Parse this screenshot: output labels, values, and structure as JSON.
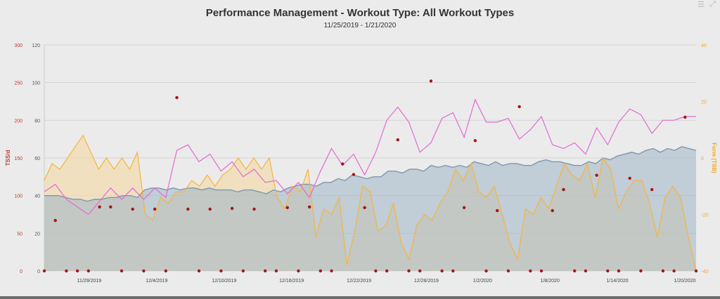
{
  "title": "Performance Management - Workout Type: All Workout Types",
  "subtitle": "11/25/2019 - 1/21/2020",
  "icons": {
    "menu": "menu-icon",
    "expand": "expand-icon"
  },
  "colors": {
    "tss_axis": "#c0392b",
    "form_axis": "#f0a830",
    "fitness_line": "#7f97ae",
    "fitness_fill": "#9fb4c7",
    "fatigue": "#e36ad0",
    "form_line": "#f5b53d",
    "form_fill": "#f3d9a4",
    "tss_dots": "#a31515",
    "grid": "#d6d6d6"
  },
  "chart_data": {
    "type": "line",
    "title": "Performance Management - Workout Type: All Workout Types",
    "subtitle": "11/25/2019 - 1/21/2020",
    "x_tick_labels": [
      "11/29/2019",
      "12/4/2019",
      "12/10/2019",
      "12/16/2019",
      "12/22/2019",
      "12/28/2019",
      "1/2/2020",
      "1/8/2020",
      "1/14/2020",
      "1/20/2020"
    ],
    "x_tick_days": [
      4,
      10,
      16,
      22,
      28,
      34,
      39,
      45,
      51,
      57
    ],
    "axes": {
      "tss": {
        "label": "TSS/d",
        "range": [
          0,
          300
        ],
        "ticks": [
          0,
          50,
          100,
          150,
          200,
          250,
          300
        ],
        "side": "left-outer"
      },
      "fitness": {
        "label": "",
        "range": [
          0,
          120
        ],
        "ticks": [
          0,
          20,
          40,
          60,
          80,
          100,
          120
        ],
        "side": "left-inner"
      },
      "form": {
        "label": "Form (TSB)",
        "range": [
          -40,
          40
        ],
        "ticks": [
          -40,
          -20,
          0,
          20,
          40
        ],
        "side": "right"
      }
    },
    "grid": true,
    "series": [
      {
        "kind": "fitness",
        "axis": "fitness",
        "values": [
          40,
          40,
          40,
          39,
          38,
          38,
          37,
          38,
          38,
          39,
          39,
          40,
          40,
          39,
          43,
          44,
          44,
          43,
          44,
          43,
          44,
          44,
          43,
          44,
          43,
          43,
          43,
          42,
          43,
          43,
          42,
          41,
          43,
          42,
          44,
          45,
          46,
          46,
          45,
          47,
          47,
          49,
          48,
          51,
          50,
          49,
          50,
          50,
          53,
          53,
          52,
          54,
          54,
          53,
          56,
          55,
          56,
          55,
          56,
          55,
          58,
          57,
          56,
          58,
          56,
          57,
          57,
          56,
          56,
          58,
          59,
          58,
          58,
          57,
          56,
          56,
          58,
          57,
          60,
          59,
          61,
          62,
          63,
          62,
          64,
          65,
          63,
          65,
          64,
          66,
          65,
          64
        ]
      },
      {
        "kind": "fatigue",
        "axis": "fitness",
        "values": [
          42,
          46,
          38,
          34,
          30,
          37,
          44,
          38,
          44,
          38,
          44,
          39,
          64,
          67,
          58,
          62,
          53,
          58,
          50,
          54,
          47,
          48,
          41,
          47,
          39,
          53,
          65,
          56,
          62,
          51,
          63,
          80,
          87,
          79,
          63,
          68,
          81,
          84,
          71,
          91,
          79,
          79,
          81,
          70,
          75,
          82,
          67,
          65,
          68,
          62,
          76,
          67,
          79,
          86,
          83,
          73,
          80,
          80,
          82,
          82
        ]
      },
      {
        "kind": "form",
        "axis": "form",
        "values": [
          -8,
          -2,
          -4,
          0,
          4,
          8,
          2,
          -4,
          0,
          -4,
          0,
          -4,
          2,
          -20,
          -22,
          -14,
          -16,
          -12,
          -12,
          -8,
          -10,
          -6,
          -10,
          -6,
          -4,
          0,
          -4,
          0,
          -4,
          0,
          -14,
          -18,
          -10,
          -12,
          -4,
          -28,
          -18,
          -20,
          -14,
          -38,
          -26,
          -10,
          -12,
          -26,
          -24,
          -16,
          -30,
          -36,
          -24,
          -20,
          -22,
          -16,
          -12,
          -4,
          -8,
          -2,
          -12,
          -14,
          -10,
          -20,
          -30,
          -36,
          -18,
          -20,
          -14,
          -18,
          -10,
          -2,
          -6,
          -8,
          -2,
          -14,
          0,
          -4,
          -18,
          -12,
          -8,
          -8,
          -16,
          -28,
          -14,
          -10,
          -14,
          -28,
          -40
        ]
      }
    ],
    "tss_daily": {
      "kind": "tss",
      "axis": "tss",
      "values": [
        0,
        67,
        0,
        0,
        0,
        85,
        85,
        0,
        82,
        0,
        82,
        0,
        230,
        82,
        0,
        82,
        0,
        83,
        0,
        82,
        0,
        0,
        84,
        0,
        85,
        0,
        0,
        142,
        128,
        84,
        0,
        0,
        174,
        0,
        0,
        252,
        0,
        0,
        84,
        173,
        0,
        80,
        0,
        218,
        0,
        0,
        80,
        108,
        0,
        0,
        127,
        0,
        0,
        123,
        0,
        108,
        0,
        0,
        204,
        0,
        0,
        75,
        205,
        0,
        0,
        193,
        0,
        0,
        0,
        0,
        0,
        0,
        0,
        0,
        0,
        0,
        0,
        0,
        0,
        0,
        0,
        0,
        0,
        0,
        0,
        0,
        0,
        0,
        0,
        0,
        0,
        0,
        0,
        0,
        0,
        0,
        0,
        0,
        0,
        0,
        0
      ]
    }
  }
}
